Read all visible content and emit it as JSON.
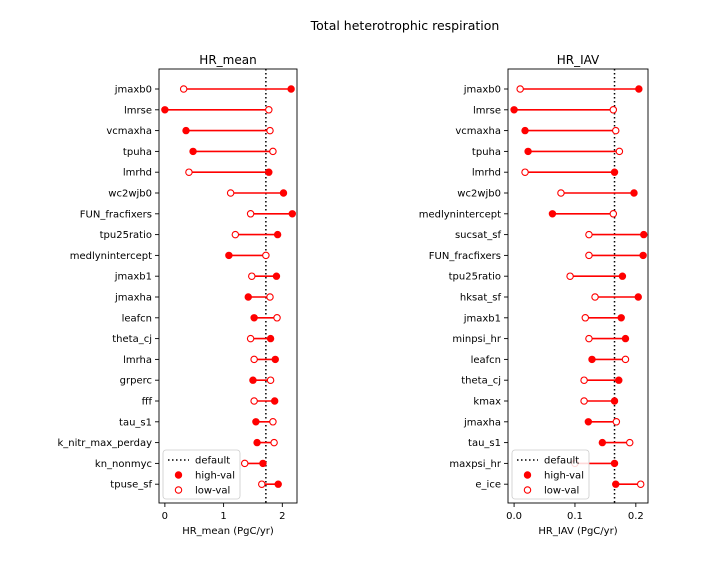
{
  "figure_title": "Total heterotrophic respiration",
  "legend_labels": {
    "default": "default",
    "high": "high-val",
    "low": "low-val"
  },
  "colors": {
    "marker": "#ff0000",
    "default_line": "#000000"
  },
  "chart_data": [
    {
      "type": "dumbbell",
      "title": "HR_mean",
      "xlabel": "HR_mean (PgC/yr)",
      "ylabel": "",
      "xlim": [
        -0.1,
        2.25
      ],
      "xticks": [
        0,
        1,
        2
      ],
      "xtick_labels": [
        "0",
        "1",
        "2"
      ],
      "default_value": 1.72,
      "legend_position": "lower-left",
      "categories": [
        "jmaxb0",
        "lmrse",
        "vcmaxha",
        "tpuha",
        "lmrhd",
        "wc2wjb0",
        "FUN_fracfixers",
        "tpu25ratio",
        "medlynintercept",
        "jmaxb1",
        "jmaxha",
        "leafcn",
        "theta_cj",
        "lmrha",
        "grperc",
        "fff",
        "tau_s1",
        "k_nitr_max_perday",
        "kn_nonmyc",
        "tpuse_sf"
      ],
      "series": [
        {
          "name": "high-val",
          "values": [
            2.15,
            0.0,
            0.36,
            0.48,
            1.77,
            2.02,
            2.17,
            1.92,
            1.09,
            1.9,
            1.42,
            1.52,
            1.8,
            1.88,
            1.5,
            1.87,
            1.55,
            1.57,
            1.67,
            1.93
          ]
        },
        {
          "name": "low-val",
          "values": [
            0.32,
            1.77,
            1.79,
            1.84,
            0.41,
            1.12,
            1.46,
            1.2,
            1.72,
            1.48,
            1.79,
            1.91,
            1.46,
            1.52,
            1.8,
            1.52,
            1.84,
            1.86,
            1.36,
            1.65
          ]
        }
      ]
    },
    {
      "type": "dumbbell",
      "title": "HR_IAV",
      "xlabel": "HR_IAV (PgC/yr)",
      "ylabel": "",
      "xlim": [
        -0.01,
        0.22
      ],
      "xticks": [
        0.0,
        0.1,
        0.2
      ],
      "xtick_labels": [
        "0.0",
        "0.1",
        "0.2"
      ],
      "default_value": 0.165,
      "legend_position": "lower-left",
      "categories": [
        "jmaxb0",
        "lmrse",
        "vcmaxha",
        "tpuha",
        "lmrhd",
        "wc2wjb0",
        "medlynintercept",
        "sucsat_sf",
        "FUN_fracfixers",
        "tpu25ratio",
        "hksat_sf",
        "jmaxb1",
        "minpsi_hr",
        "leafcn",
        "theta_cj",
        "kmax",
        "jmaxha",
        "tau_s1",
        "maxpsi_hr",
        "e_ice"
      ],
      "series": [
        {
          "name": "high-val",
          "values": [
            0.205,
            0.0,
            0.018,
            0.023,
            0.165,
            0.197,
            0.063,
            0.213,
            0.212,
            0.178,
            0.204,
            0.176,
            0.183,
            0.128,
            0.172,
            0.165,
            0.122,
            0.145,
            0.165,
            0.167
          ]
        },
        {
          "name": "low-val",
          "values": [
            0.01,
            0.163,
            0.167,
            0.173,
            0.018,
            0.077,
            0.163,
            0.123,
            0.123,
            0.092,
            0.133,
            0.117,
            0.123,
            0.183,
            0.115,
            0.115,
            0.168,
            0.19,
            0.1,
            0.208
          ]
        }
      ]
    }
  ]
}
